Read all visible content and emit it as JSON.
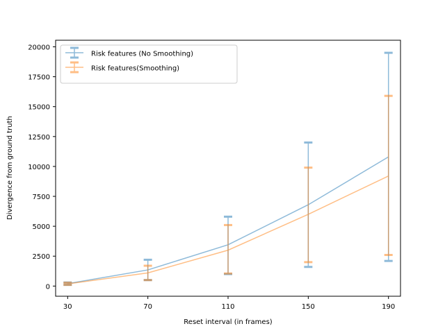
{
  "chart_data": {
    "type": "line",
    "title": "",
    "xlabel": "Reset interval (in frames)",
    "ylabel": "Divergence from ground truth",
    "x": [
      30,
      70,
      110,
      150,
      190
    ],
    "xlim": [
      24,
      196
    ],
    "ylim": [
      -850,
      20550
    ],
    "yticks": [
      0,
      2500,
      5000,
      7500,
      10000,
      12500,
      15000,
      17500,
      20000
    ],
    "grid": false,
    "legend_position": "upper-left",
    "series": [
      {
        "name": "Risk features (No Smoothing)",
        "color": "#1f77b4",
        "values": [
          200,
          1350,
          3450,
          6800,
          10800
        ],
        "error_low": [
          100,
          500,
          1000,
          1600,
          2100
        ],
        "error_high": [
          300,
          2200,
          5800,
          12000,
          19500
        ]
      },
      {
        "name": "Risk features(Smoothing)",
        "color": "#ff7f0e",
        "values": [
          180,
          1100,
          3000,
          6000,
          9200
        ],
        "error_low": [
          100,
          500,
          1050,
          2000,
          2600
        ],
        "error_high": [
          280,
          1700,
          5100,
          9900,
          15900
        ]
      }
    ]
  }
}
